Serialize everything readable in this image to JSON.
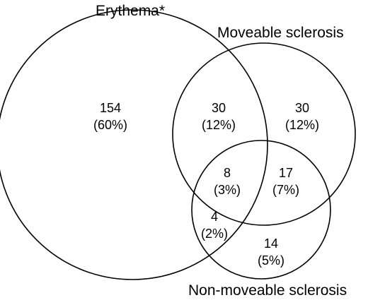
{
  "diagram": {
    "type": "venn",
    "sets": [
      {
        "id": "erythema",
        "label": "Erythema*"
      },
      {
        "id": "moveable",
        "label": "Moveable sclerosis"
      },
      {
        "id": "nonmoveable",
        "label": "Non-moveable sclerosis"
      }
    ],
    "regions": [
      {
        "id": "erythema-only",
        "sets": [
          "erythema"
        ],
        "count": "154",
        "percent": "(60%)"
      },
      {
        "id": "erythema-moveable",
        "sets": [
          "erythema",
          "moveable"
        ],
        "count": "30",
        "percent": "(12%)"
      },
      {
        "id": "moveable-only",
        "sets": [
          "moveable"
        ],
        "count": "30",
        "percent": "(12%)"
      },
      {
        "id": "all-three",
        "sets": [
          "erythema",
          "moveable",
          "nonmoveable"
        ],
        "count": "8",
        "percent": "(3%)"
      },
      {
        "id": "moveable-nonmoveable",
        "sets": [
          "moveable",
          "nonmoveable"
        ],
        "count": "17",
        "percent": "(7%)"
      },
      {
        "id": "erythema-nonmoveable",
        "sets": [
          "erythema",
          "nonmoveable"
        ],
        "count": "4",
        "percent": "(2%)"
      },
      {
        "id": "nonmoveable-only",
        "sets": [
          "nonmoveable"
        ],
        "count": "14",
        "percent": "(5%)"
      }
    ],
    "line_color": "#000000",
    "background": "#ffffff"
  }
}
